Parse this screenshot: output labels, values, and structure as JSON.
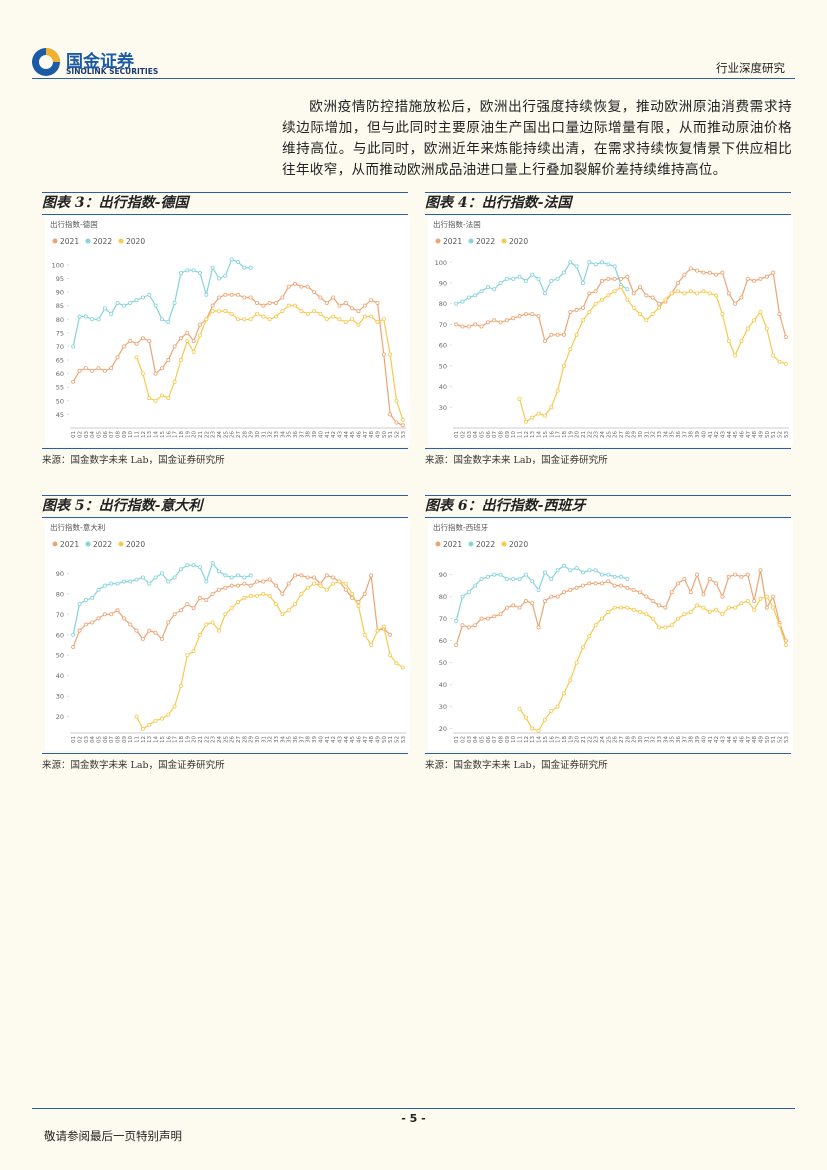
{
  "header": {
    "logo_cn": "国金证券",
    "logo_en": "SINOLINK SECURITIES",
    "section": "行业深度研究"
  },
  "body": {
    "paragraph": "欧洲疫情防控措施放松后，欧洲出行强度持续恢复，推动欧洲原油消费需求持续边际增加，但与此同时主要原油生产国出口量边际增量有限，从而推动原油价格维持高位。与此同时，欧洲近年来炼能持续出清，在需求持续恢复情景下供应相比往年收窄，从而推动欧洲成品油进口量上行叠加裂解价差持续维持高位。"
  },
  "chart_data": [
    {
      "type": "line",
      "figure_label": "图表 3：出行指数-德国",
      "title": "出行指数-德国",
      "source": "来源：国金数字未来 Lab，国金证券研究所",
      "categories": [
        "01",
        "02",
        "03",
        "04",
        "05",
        "06",
        "07",
        "08",
        "09",
        "10",
        "11",
        "12",
        "13",
        "14",
        "15",
        "16",
        "17",
        "18",
        "19",
        "20",
        "21",
        "22",
        "23",
        "24",
        "25",
        "26",
        "27",
        "28",
        "29",
        "30",
        "31",
        "32",
        "33",
        "34",
        "35",
        "36",
        "37",
        "38",
        "39",
        "40",
        "41",
        "42",
        "43",
        "44",
        "45",
        "46",
        "47",
        "48",
        "49",
        "50",
        "51",
        "52",
        "53"
      ],
      "series": [
        {
          "name": "2021",
          "color": "#eba574",
          "values": [
            57,
            61,
            62,
            61,
            62,
            61,
            62,
            66,
            70,
            72,
            71,
            73,
            72,
            60,
            62,
            65,
            70,
            73,
            75,
            72,
            78,
            80,
            85,
            88,
            89,
            89,
            89,
            88,
            88,
            86,
            85,
            86,
            86,
            88,
            92,
            93,
            92,
            92,
            90,
            88,
            86,
            88,
            85,
            86,
            84,
            83,
            85,
            87,
            86,
            67,
            45,
            42,
            41
          ]
        },
        {
          "name": "2022",
          "color": "#85d3dc",
          "values": [
            70,
            81,
            81,
            80,
            80,
            84,
            82,
            86,
            85,
            86,
            87,
            88,
            89,
            85,
            80,
            79,
            86,
            97,
            98,
            98,
            97,
            89,
            99,
            95,
            96,
            102,
            101,
            99,
            99,
            null,
            null,
            null,
            null,
            null,
            null,
            null,
            null,
            null,
            null,
            null,
            null,
            null,
            null,
            null,
            null,
            null,
            null,
            null,
            null,
            null,
            null,
            null,
            null
          ]
        },
        {
          "name": "2020",
          "color": "#f6c94f",
          "values": [
            null,
            null,
            null,
            null,
            null,
            null,
            null,
            null,
            null,
            null,
            66,
            60,
            51,
            50,
            52,
            51,
            57,
            65,
            72,
            68,
            74,
            80,
            83,
            83,
            83,
            82,
            80,
            80,
            80,
            82,
            81,
            80,
            81,
            83,
            85,
            85,
            83,
            82,
            83,
            82,
            80,
            81,
            80,
            79,
            80,
            78,
            81,
            81,
            79,
            80,
            67,
            50,
            43
          ]
        }
      ],
      "ylim": [
        40,
        104
      ],
      "yticks": [
        45,
        50,
        55,
        60,
        65,
        70,
        75,
        80,
        85,
        90,
        95,
        100
      ],
      "grid": false
    },
    {
      "type": "line",
      "figure_label": "图表 4：出行指数-法国",
      "title": "出行指数-法国",
      "source": "来源：国金数字未来 Lab，国金证券研究所",
      "categories": [
        "01",
        "02",
        "03",
        "04",
        "05",
        "06",
        "07",
        "08",
        "09",
        "10",
        "11",
        "12",
        "13",
        "14",
        "15",
        "16",
        "17",
        "18",
        "19",
        "20",
        "21",
        "22",
        "23",
        "24",
        "25",
        "26",
        "27",
        "28",
        "29",
        "30",
        "31",
        "32",
        "33",
        "34",
        "35",
        "36",
        "37",
        "38",
        "39",
        "40",
        "41",
        "42",
        "43",
        "44",
        "45",
        "46",
        "47",
        "48",
        "49",
        "50",
        "51",
        "52",
        "53"
      ],
      "series": [
        {
          "name": "2021",
          "color": "#eba574",
          "values": [
            70,
            69,
            69,
            70,
            69,
            71,
            72,
            71,
            72,
            73,
            74,
            75,
            75,
            74,
            62,
            65,
            65,
            65,
            76,
            77,
            78,
            85,
            86,
            91,
            92,
            92,
            92,
            93,
            85,
            88,
            84,
            83,
            80,
            81,
            85,
            90,
            94,
            97,
            96,
            95,
            95,
            94,
            95,
            85,
            80,
            83,
            92,
            91,
            92,
            93,
            95,
            75,
            64
          ]
        },
        {
          "name": "2022",
          "color": "#85d3dc",
          "values": [
            80,
            81,
            83,
            84,
            86,
            88,
            87,
            90,
            92,
            92,
            93,
            91,
            94,
            92,
            85,
            91,
            92,
            95,
            100,
            98,
            90,
            100,
            99,
            100,
            99,
            98,
            89,
            87,
            null,
            null,
            null,
            null,
            null,
            null,
            null,
            null,
            null,
            null,
            null,
            null,
            null,
            null,
            null,
            null,
            null,
            null,
            null,
            null,
            null,
            null,
            null,
            null,
            null
          ]
        },
        {
          "name": "2020",
          "color": "#f6c94f",
          "values": [
            null,
            null,
            null,
            null,
            null,
            null,
            null,
            null,
            null,
            null,
            34,
            23,
            25,
            27,
            26,
            30,
            38,
            50,
            58,
            65,
            72,
            76,
            80,
            82,
            84,
            86,
            88,
            82,
            78,
            75,
            72,
            75,
            78,
            82,
            85,
            86,
            85,
            86,
            85,
            86,
            85,
            84,
            75,
            62,
            55,
            62,
            68,
            72,
            76,
            68,
            55,
            52,
            51
          ]
        }
      ],
      "ylim": [
        20,
        104
      ],
      "yticks": [
        30,
        40,
        50,
        60,
        70,
        80,
        90,
        100
      ],
      "grid": false
    },
    {
      "type": "line",
      "figure_label": "图表 5：出行指数-意大利",
      "title": "出行指数-意大利",
      "source": "来源：国金数字未来 Lab，国金证券研究所",
      "categories": [
        "01",
        "02",
        "03",
        "04",
        "05",
        "06",
        "07",
        "08",
        "09",
        "10",
        "11",
        "12",
        "13",
        "14",
        "15",
        "16",
        "17",
        "18",
        "19",
        "20",
        "21",
        "22",
        "23",
        "24",
        "25",
        "26",
        "27",
        "28",
        "29",
        "30",
        "31",
        "32",
        "33",
        "34",
        "35",
        "36",
        "37",
        "38",
        "39",
        "40",
        "41",
        "42",
        "43",
        "44",
        "45",
        "46",
        "47",
        "48",
        "49",
        "50",
        "51",
        "52",
        "53"
      ],
      "series": [
        {
          "name": "2021",
          "color": "#eba574",
          "values": [
            54,
            62,
            65,
            66,
            68,
            70,
            70,
            72,
            68,
            65,
            62,
            58,
            62,
            61,
            58,
            66,
            70,
            72,
            75,
            73,
            78,
            77,
            80,
            82,
            83,
            84,
            84,
            85,
            84,
            86,
            86,
            87,
            84,
            80,
            85,
            89,
            89,
            88,
            88,
            85,
            89,
            88,
            86,
            82,
            78,
            76,
            80,
            89,
            62,
            63,
            60,
            null,
            null
          ]
        },
        {
          "name": "2022",
          "color": "#85d3dc",
          "values": [
            60,
            75,
            77,
            78,
            82,
            84,
            85,
            85,
            86,
            86,
            87,
            88,
            85,
            88,
            90,
            86,
            88,
            92,
            94,
            94,
            93,
            86,
            95,
            91,
            89,
            88,
            89,
            88,
            89,
            null,
            null,
            null,
            null,
            null,
            null,
            null,
            null,
            null,
            null,
            null,
            null,
            null,
            null,
            null,
            null,
            null,
            null,
            null,
            null,
            null,
            null,
            null,
            null
          ]
        },
        {
          "name": "2020",
          "color": "#f6c94f",
          "values": [
            null,
            null,
            null,
            null,
            null,
            null,
            null,
            null,
            null,
            null,
            20,
            14,
            16,
            18,
            19,
            21,
            25,
            35,
            50,
            52,
            60,
            65,
            66,
            62,
            70,
            73,
            76,
            78,
            79,
            79,
            80,
            79,
            75,
            70,
            72,
            75,
            80,
            83,
            85,
            84,
            82,
            85,
            86,
            85,
            80,
            74,
            60,
            55,
            62,
            64,
            50,
            46,
            44
          ]
        }
      ],
      "ylim": [
        12,
        98
      ],
      "yticks": [
        20,
        30,
        40,
        50,
        60,
        70,
        80,
        90
      ],
      "grid": false
    },
    {
      "type": "line",
      "figure_label": "图表 6：出行指数-西班牙",
      "title": "出行指数-西班牙",
      "source": "来源：国金数字未来 Lab，国金证券研究所",
      "categories": [
        "01",
        "02",
        "03",
        "04",
        "05",
        "06",
        "07",
        "08",
        "09",
        "10",
        "11",
        "12",
        "13",
        "14",
        "15",
        "16",
        "17",
        "18",
        "19",
        "20",
        "21",
        "22",
        "23",
        "24",
        "25",
        "26",
        "27",
        "28",
        "29",
        "30",
        "31",
        "32",
        "33",
        "34",
        "35",
        "36",
        "37",
        "38",
        "39",
        "40",
        "41",
        "42",
        "43",
        "44",
        "45",
        "46",
        "47",
        "48",
        "49",
        "50",
        "51",
        "52",
        "53"
      ],
      "series": [
        {
          "name": "2021",
          "color": "#eba574",
          "values": [
            58,
            67,
            66,
            67,
            70,
            70,
            71,
            72,
            75,
            76,
            75,
            78,
            77,
            66,
            78,
            80,
            80,
            82,
            83,
            84,
            85,
            86,
            86,
            86,
            87,
            85,
            85,
            84,
            83,
            82,
            80,
            78,
            76,
            75,
            82,
            86,
            88,
            82,
            90,
            81,
            88,
            86,
            80,
            89,
            90,
            89,
            90,
            78,
            92,
            75,
            80,
            68,
            60
          ]
        },
        {
          "name": "2022",
          "color": "#85d3dc",
          "values": [
            69,
            80,
            82,
            85,
            88,
            89,
            90,
            90,
            88,
            88,
            88,
            90,
            87,
            83,
            91,
            88,
            92,
            94,
            92,
            93,
            91,
            92,
            92,
            90,
            90,
            89,
            89,
            88,
            null,
            null,
            null,
            null,
            null,
            null,
            null,
            null,
            null,
            null,
            null,
            null,
            null,
            null,
            null,
            null,
            null,
            null,
            null,
            null,
            null,
            null,
            null,
            null,
            null
          ]
        },
        {
          "name": "2020",
          "color": "#f6c94f",
          "values": [
            null,
            null,
            null,
            null,
            null,
            null,
            null,
            null,
            null,
            null,
            29,
            25,
            20,
            19,
            24,
            28,
            30,
            36,
            42,
            50,
            57,
            62,
            67,
            70,
            73,
            75,
            75,
            75,
            74,
            73,
            72,
            70,
            66,
            66,
            67,
            70,
            72,
            73,
            76,
            75,
            73,
            74,
            72,
            75,
            75,
            77,
            78,
            74,
            79,
            80,
            75,
            67,
            58
          ]
        }
      ],
      "ylim": [
        18,
        98
      ],
      "yticks": [
        20,
        30,
        40,
        50,
        60,
        70,
        80,
        90
      ],
      "grid": false
    }
  ],
  "footer": {
    "page": "- 5 -",
    "disclaimer": "敬请参阅最后一页特别声明"
  }
}
